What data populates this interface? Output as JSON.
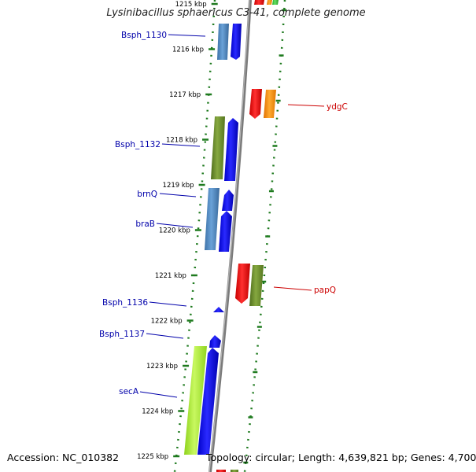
{
  "title": "Lysinibacillus sphaericus C3-41, complete genome",
  "footer": {
    "accession_label": "Accession:",
    "accession": "NC_010382",
    "topology_label": "Topology:",
    "topology": "circular",
    "length_label": "Length:",
    "length": "4,639,821 bp",
    "genes_label": "Genes:",
    "genes": "4,700"
  },
  "colors": {
    "backbone": "#808080",
    "tick": "#1e7a1e",
    "label_blue": "#0000aa",
    "label_red": "#cc0000",
    "gene_blue": "#0000ee",
    "gene_steel": "#4a86c0",
    "gene_olive": "#6a8a2a",
    "gene_lime": "#a8e830",
    "gene_red": "#ee0000",
    "gene_orange": "#ff8a00",
    "gene_green": "#33cc33"
  },
  "ticks": [
    {
      "label": "1215 kbp",
      "kbp": 1215
    },
    {
      "label": "1216 kbp",
      "kbp": 1216
    },
    {
      "label": "1217 kbp",
      "kbp": 1217
    },
    {
      "label": "1218 kbp",
      "kbp": 1218
    },
    {
      "label": "1219 kbp",
      "kbp": 1219
    },
    {
      "label": "1220 kbp",
      "kbp": 1220
    },
    {
      "label": "1221 kbp",
      "kbp": 1221
    },
    {
      "label": "1222 kbp",
      "kbp": 1222
    },
    {
      "label": "1223 kbp",
      "kbp": 1223
    },
    {
      "label": "1224 kbp",
      "kbp": 1224
    },
    {
      "label": "1225 kbp",
      "kbp": 1225
    }
  ],
  "labels": [
    {
      "text": "Bsph_1130",
      "strand": "minus"
    },
    {
      "text": "ydgC",
      "strand": "plus"
    },
    {
      "text": "Bsph_1132",
      "strand": "minus"
    },
    {
      "text": "brnQ",
      "strand": "minus"
    },
    {
      "text": "braB",
      "strand": "minus"
    },
    {
      "text": "papQ",
      "strand": "plus"
    },
    {
      "text": "Bsph_1136",
      "strand": "minus"
    },
    {
      "text": "Bsph_1137",
      "strand": "minus"
    },
    {
      "text": "secA",
      "strand": "minus"
    }
  ]
}
